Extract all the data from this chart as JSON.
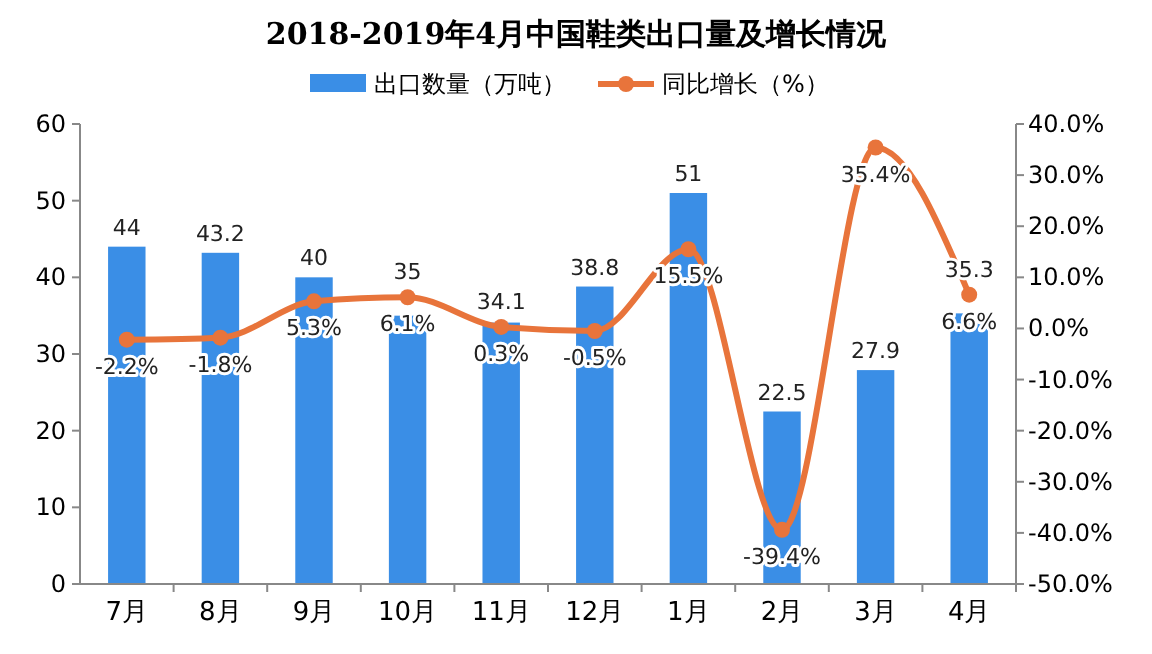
{
  "chart_data": {
    "type": "bar",
    "title": "2018-2019年4月中国鞋类出口量及增长情况",
    "categories": [
      "7月",
      "8月",
      "9月",
      "10月",
      "11月",
      "12月",
      "1月",
      "2月",
      "3月",
      "4月"
    ],
    "series": [
      {
        "name": "出口数量（万吨）",
        "color": "#3a8ee6",
        "values": [
          44,
          43.2,
          40,
          35,
          34.1,
          38.8,
          51,
          22.5,
          27.9,
          35.3
        ]
      },
      {
        "name": "同比增长（%）",
        "type": "line",
        "axis": "y2",
        "color": "#e8743b",
        "values": [
          -2.2,
          -1.8,
          5.3,
          6.1,
          0.3,
          -0.5,
          15.5,
          -39.4,
          35.4,
          6.6
        ],
        "value_labels": [
          "-2.2%",
          "-1.8%",
          "5.3%",
          "6.1%",
          "0.3%",
          "-0.5%",
          "15.5%",
          "-39.4%",
          "35.4%",
          "6.6%"
        ]
      }
    ],
    "ylim": [
      0,
      60
    ],
    "yticks": [
      0,
      10,
      20,
      30,
      40,
      50,
      60
    ],
    "y2lim": [
      -50,
      40
    ],
    "y2ticks": [
      {
        "value": -50,
        "label": "-50.0%"
      },
      {
        "value": -40,
        "label": "-40.0%"
      },
      {
        "value": -30,
        "label": "-30.0%"
      },
      {
        "value": -20,
        "label": "-20.0%"
      },
      {
        "value": -10,
        "label": "-10.0%"
      },
      {
        "value": 0,
        "label": "0.0%"
      },
      {
        "value": 10,
        "label": "10.0%"
      },
      {
        "value": 20,
        "label": "20.0%"
      },
      {
        "value": 30,
        "label": "30.0%"
      },
      {
        "value": 40,
        "label": "40.0%"
      }
    ],
    "data_labels": true,
    "legend": "top",
    "marker": "circle",
    "grid": false
  }
}
